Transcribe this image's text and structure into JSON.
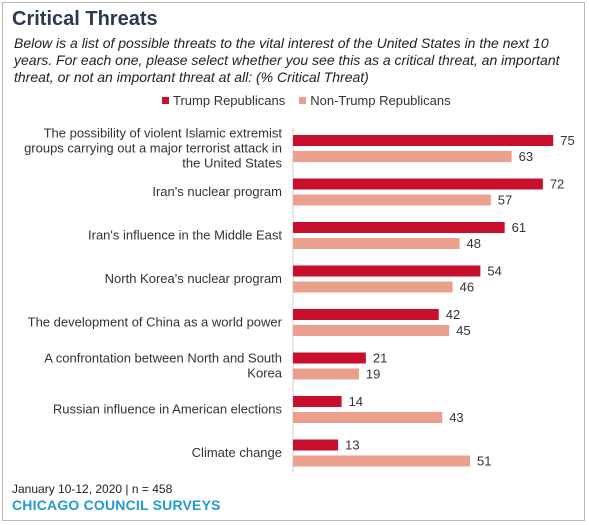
{
  "title": "Critical Threats",
  "subtitle": "Below is a list of possible threats to the vital interest of the United States in the next 10 years. For each one, please select whether you see this as a critical threat, an important threat, or not an important threat at all: (% Critical Threat)",
  "footer": {
    "note": "January 10-12, 2020 | n = 458",
    "brand": "CHICAGO COUNCIL SURVEYS"
  },
  "colors": {
    "trump": "#c8102e",
    "non_trump": "#eaa08c"
  },
  "chart_data": {
    "type": "bar",
    "orientation": "horizontal",
    "categories": [
      [
        "The possibility of violent Islamic extremist",
        "groups carrying out a major terrorist attack in",
        "the United States"
      ],
      [
        "Iran's nuclear program"
      ],
      [
        "Iran's influence in the Middle East"
      ],
      [
        "North Korea's nuclear program"
      ],
      [
        "The development of China as a world power"
      ],
      [
        "A confrontation between North and South",
        "Korea"
      ],
      [
        "Russian influence in American elections"
      ],
      [
        "Climate change"
      ]
    ],
    "series": [
      {
        "name": "Trump Republicans",
        "values": [
          75,
          72,
          61,
          54,
          42,
          21,
          14,
          13
        ]
      },
      {
        "name": "Non-Trump Republicans",
        "values": [
          63,
          57,
          48,
          46,
          45,
          19,
          43,
          51
        ]
      }
    ],
    "xlim": [
      0,
      100
    ],
    "grid": false,
    "legend": "top"
  }
}
